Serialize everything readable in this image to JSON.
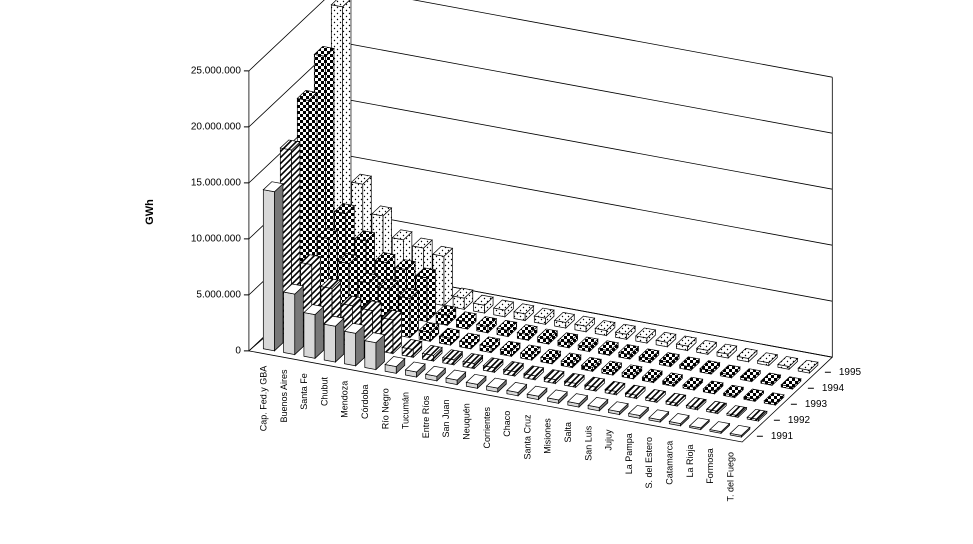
{
  "chart_data": {
    "type": "bar3d",
    "y_label": "GWh",
    "categories": [
      "Cap. Fed.y GBA",
      "Buenos Aires",
      "Santa Fe",
      "Chubut",
      "Mendoza",
      "Córdoba",
      "Río Negro",
      "Tucumán",
      "Entre Ríos",
      "San Juan",
      "Neuquén",
      "Corrientes",
      "Chaco",
      "Santa Cruz",
      "Misiones",
      "Salta",
      "San Luis",
      "Jujuy",
      "La Pampa",
      "S. del Estero",
      "Catamarca",
      "La Rioja",
      "Formosa",
      "T. del Fuego"
    ],
    "series": [
      {
        "name": "1991",
        "color": "#d8d8d8",
        "values": [
          14200000,
          5400000,
          3900000,
          3200000,
          2900000,
          2400000,
          600000,
          450000,
          400000,
          400000,
          350000,
          350000,
          300000,
          300000,
          300000,
          300000,
          300000,
          250000,
          250000,
          200000,
          200000,
          150000,
          150000,
          150000
        ]
      },
      {
        "name": "1992",
        "color": "#000000",
        "values": [
          16500000,
          6600000,
          4800000,
          3600000,
          3500000,
          3000000,
          700000,
          500000,
          450000,
          450000,
          400000,
          400000,
          350000,
          350000,
          350000,
          350000,
          300000,
          300000,
          250000,
          250000,
          200000,
          200000,
          150000,
          150000
        ]
      },
      {
        "name": "1993",
        "color": "#000000",
        "values": [
          19500000,
          7500000,
          5600000,
          4200000,
          4000000,
          3500000,
          800000,
          600000,
          500000,
          500000,
          450000,
          450000,
          400000,
          400000,
          350000,
          350000,
          350000,
          300000,
          300000,
          250000,
          250000,
          200000,
          200000,
          200000
        ]
      },
      {
        "name": "1994",
        "color": "#000000",
        "values": [
          22000000,
          8300000,
          6200000,
          4600000,
          4300000,
          3900000,
          900000,
          650000,
          550000,
          550000,
          500000,
          450000,
          450000,
          400000,
          400000,
          400000,
          350000,
          350000,
          300000,
          300000,
          250000,
          250000,
          200000,
          200000
        ]
      },
      {
        "name": "1995",
        "color": "#000000",
        "values": [
          25000000,
          9500000,
          7000000,
          5200000,
          4800000,
          4400000,
          1000000,
          700000,
          600000,
          600000,
          550000,
          500000,
          500000,
          450000,
          450000,
          450000,
          400000,
          400000,
          350000,
          350000,
          300000,
          250000,
          250000,
          250000
        ]
      }
    ],
    "ylim": [
      0,
      25000000
    ],
    "yticks": [
      0,
      {
        "value": 5000000,
        "label": "5.000.000"
      },
      {
        "value": 10000000,
        "label": "10.000.000"
      },
      {
        "value": 15000000,
        "label": "15.000.000"
      },
      {
        "value": 20000000,
        "label": "20.000.000"
      },
      {
        "value": 25000000,
        "label": "25.000.000"
      }
    ],
    "grid": true
  }
}
